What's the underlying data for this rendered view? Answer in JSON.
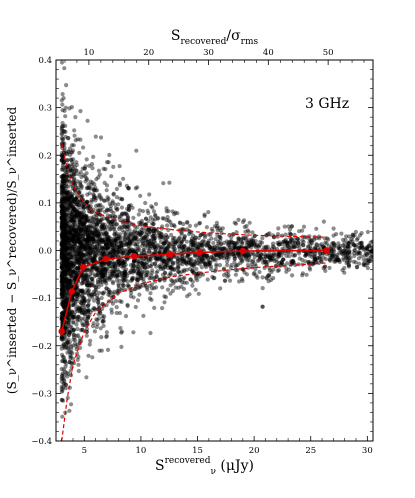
{
  "chart_data": {
    "type": "scatter",
    "annotation": "3 GHz",
    "xlabel": "S_ν^recovered (μJy)",
    "xlabel_parts": {
      "symbol": "S",
      "sub": "ν",
      "sup": "recovered",
      "unit": " (μJy)"
    },
    "x2label": "S_recovered/σ_rms",
    "x2label_parts": {
      "symbol": "S",
      "sub": "recovered",
      "mid": "/σ",
      "sub2": "rms"
    },
    "ylabel": "(S_ν^inserted − S_ν^recovered)/S_ν^inserted",
    "xlim": [
      2.5,
      30.5
    ],
    "ylim": [
      -0.4,
      0.4
    ],
    "x2lim": [
      4.5,
      57.5
    ],
    "xticks": [
      5,
      10,
      15,
      20,
      25,
      30
    ],
    "x2ticks": [
      10,
      20,
      30,
      40,
      50
    ],
    "yticks": [
      -0.4,
      -0.3,
      -0.2,
      -0.1,
      0.0,
      0.1,
      0.2,
      0.3,
      0.4
    ],
    "xticklabels": [
      "5",
      "10",
      "15",
      "20",
      "25",
      "30"
    ],
    "x2ticklabels": [
      "10",
      "20",
      "30",
      "40",
      "50"
    ],
    "yticklabels": [
      "−0.4",
      "−0.3",
      "−0.2",
      "−0.1",
      "0.0",
      "0.1",
      "0.2",
      "0.3",
      "0.4"
    ],
    "grid": false,
    "colors": {
      "points": "#000000",
      "fit": "#e00000"
    },
    "scatter_model": {
      "n_points": 4200,
      "x_range": [
        3.0,
        30.5
      ],
      "x_distribution": "power-law concentrated at faint fluxes",
      "y_spread_sigma_at_x": [
        [
          3.0,
          0.135
        ],
        [
          5.0,
          0.085
        ],
        [
          10.0,
          0.045
        ],
        [
          15.0,
          0.032
        ],
        [
          20.0,
          0.025
        ],
        [
          25.0,
          0.02
        ],
        [
          30.0,
          0.018
        ]
      ]
    },
    "median": {
      "x": [
        3.0,
        3.9,
        4.9,
        6.9,
        9.4,
        12.6,
        15.2,
        19.0,
        26.4
      ],
      "y": [
        -0.17,
        -0.086,
        -0.035,
        -0.018,
        -0.012,
        -0.008,
        -0.004,
        -0.001,
        0.0
      ]
    },
    "envelope_upper": {
      "x": [
        3.0,
        3.5,
        4.0,
        5.0,
        6.0,
        8.0,
        10.0,
        13.0,
        16.0,
        20.0,
        24.0,
        26.4
      ],
      "y": [
        0.225,
        0.17,
        0.135,
        0.1,
        0.08,
        0.062,
        0.052,
        0.043,
        0.037,
        0.032,
        0.029,
        0.028
      ]
    },
    "envelope_lower": {
      "x": [
        3.0,
        3.5,
        4.0,
        5.0,
        6.0,
        8.0,
        10.0,
        13.0,
        16.0,
        20.0,
        24.0,
        26.4
      ],
      "y": [
        -0.4,
        -0.31,
        -0.24,
        -0.17,
        -0.13,
        -0.09,
        -0.07,
        -0.054,
        -0.045,
        -0.036,
        -0.03,
        -0.026
      ]
    }
  }
}
